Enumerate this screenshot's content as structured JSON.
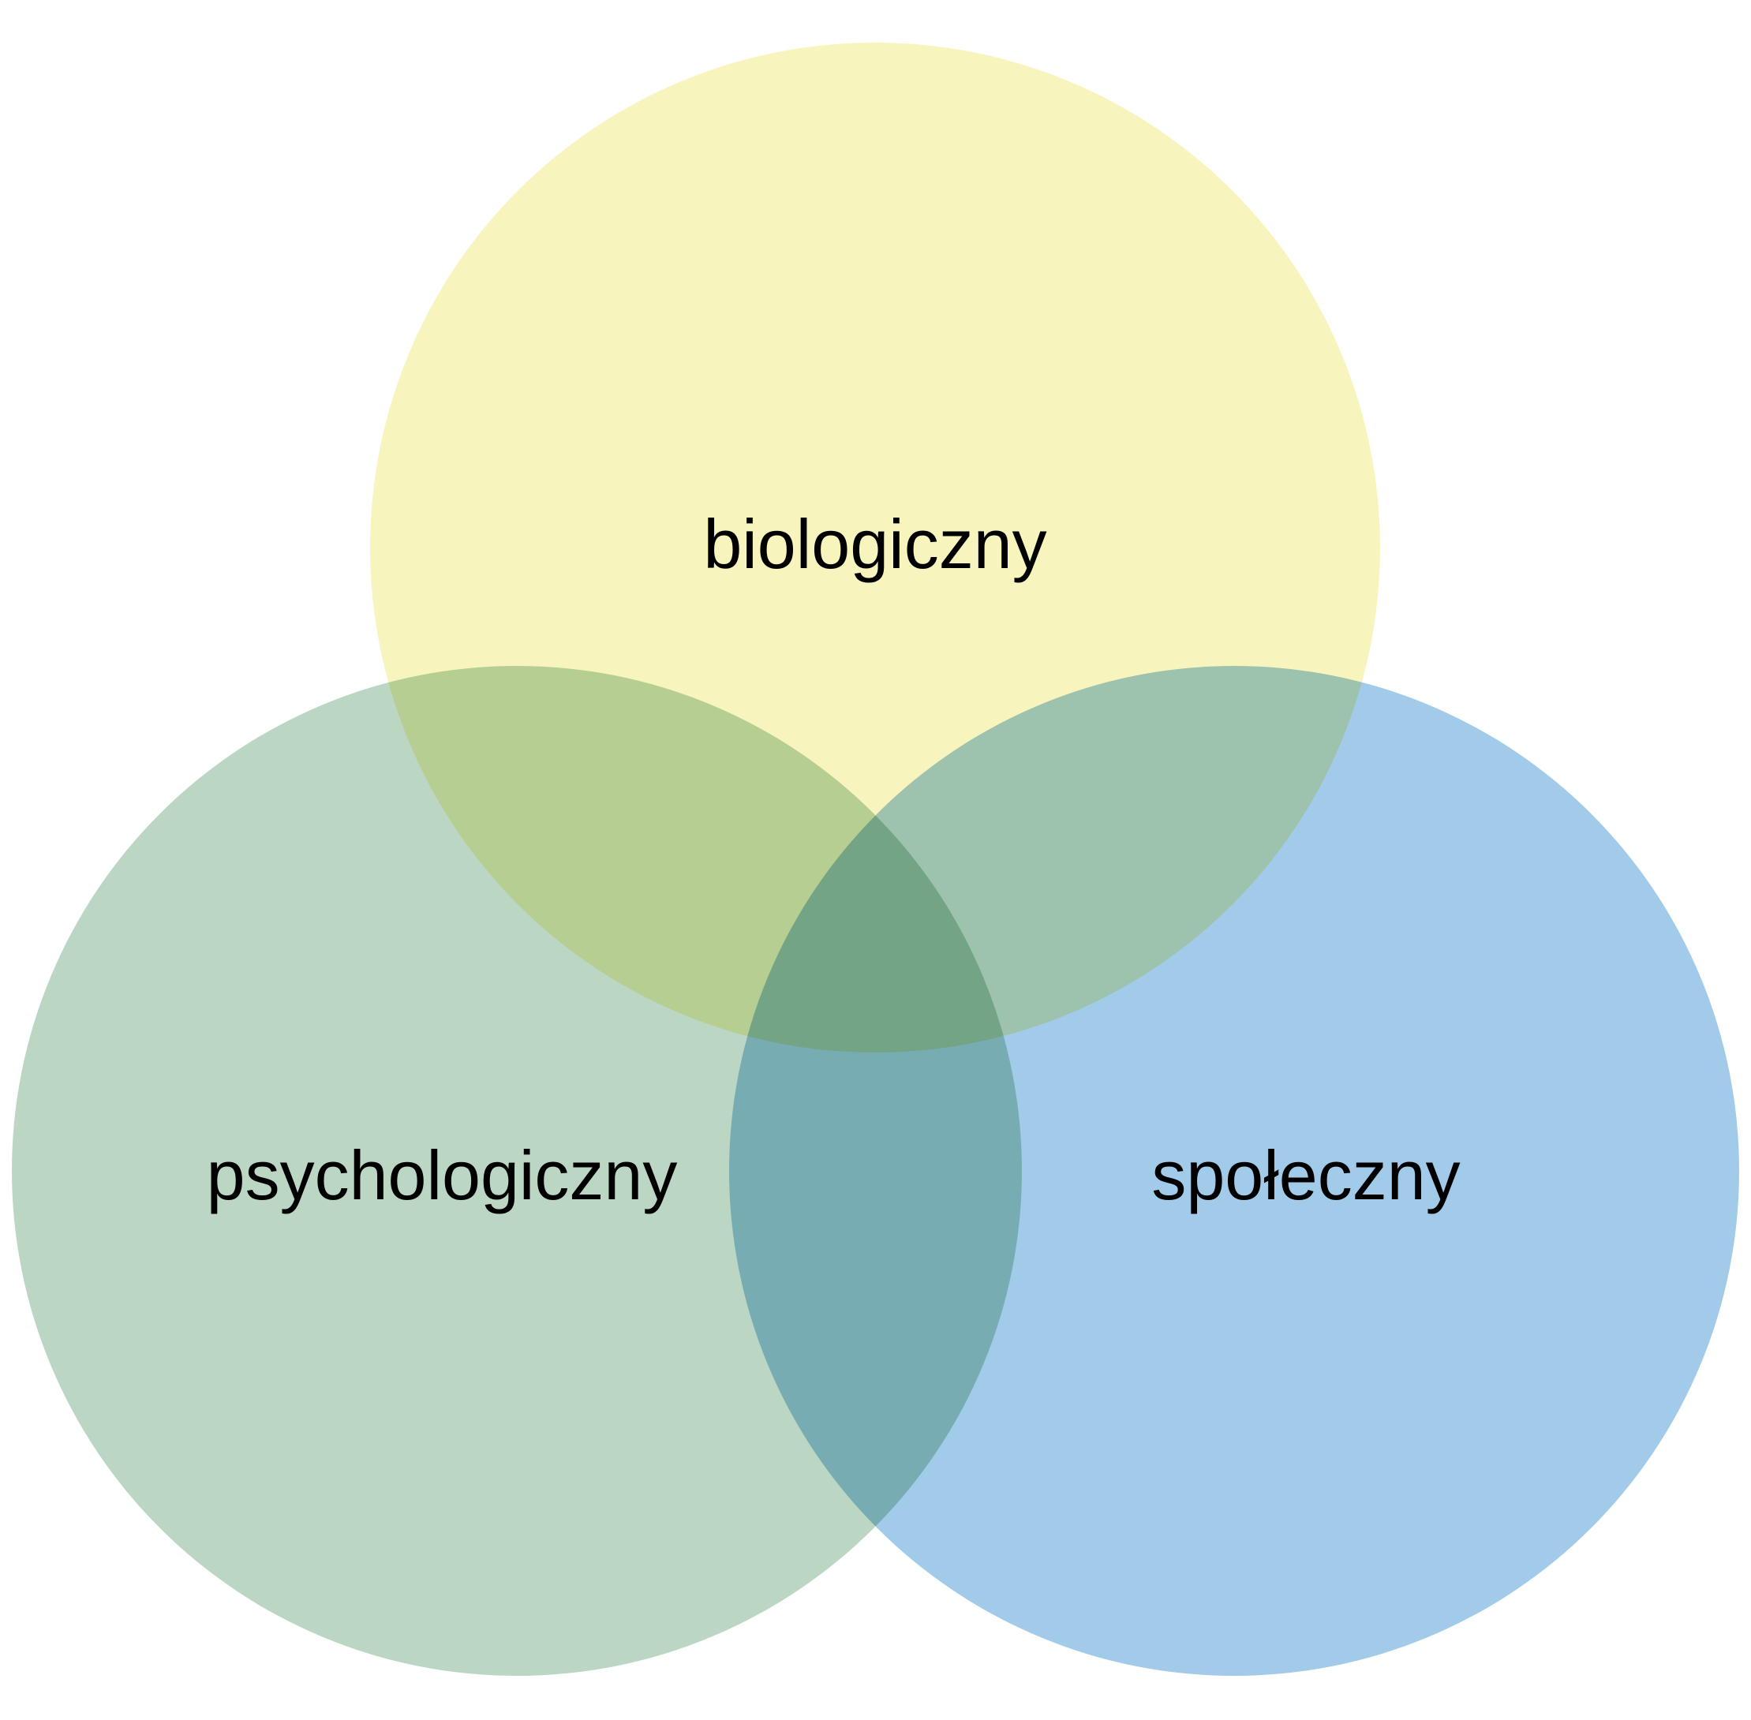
{
  "diagram": {
    "type": "venn",
    "sets": [
      {
        "id": "bio",
        "label": "biologiczny",
        "color": "#f6f0a8"
      },
      {
        "id": "psy",
        "label": "psychologiczny",
        "color": "#acceb6"
      },
      {
        "id": "spo",
        "label": "społeczny",
        "color": "#88bce3"
      }
    ]
  }
}
